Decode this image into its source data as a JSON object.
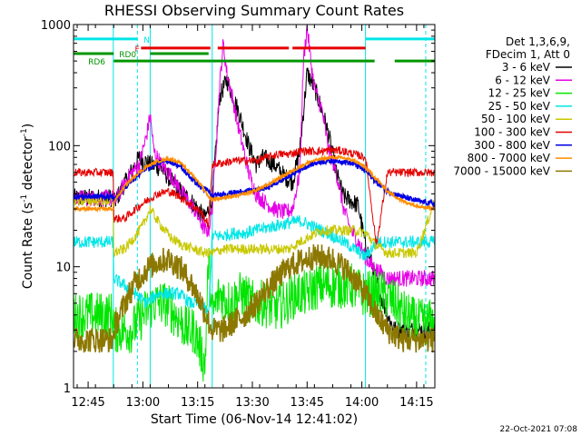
{
  "chart_data": {
    "type": "line",
    "title": "RHESSI Observing Summary Count Rates",
    "xlabel": "Start Time (06-Nov-14 12:41:02)",
    "ylabel": "Count Rate (s",
    "ylabel_sup": "-1",
    "ylabel_tail": " detector",
    "ylabel_sup2": "-1",
    "ylabel_end": ")",
    "x_unit": "minutes after 12:41:02",
    "xlim": [
      0,
      99
    ],
    "ylim": [
      1,
      1000
    ],
    "yscale": "log",
    "x_ticks": [
      {
        "label": "12:45",
        "x": 4
      },
      {
        "label": "13:00",
        "x": 19
      },
      {
        "label": "13:15",
        "x": 34
      },
      {
        "label": "13:30",
        "x": 49
      },
      {
        "label": "13:45",
        "x": 64
      },
      {
        "label": "14:00",
        "x": 79
      },
      {
        "label": "14:15",
        "x": 94
      }
    ],
    "y_ticks": [
      {
        "label": "1",
        "y": 1
      },
      {
        "label": "10",
        "y": 10
      },
      {
        "label": "100",
        "y": 100
      },
      {
        "label": "1000",
        "y": 1000
      }
    ],
    "grid": false,
    "legend_position": "right",
    "legend_header": [
      "Det 1,3,6,9,",
      "FDecim 1, Att 0"
    ],
    "footer_date": "22-Oct-2021 07:08",
    "series": [
      {
        "name": "3 - 6 keV",
        "color": "#000000",
        "x": [
          0,
          10.9,
          11,
          15,
          18,
          21,
          24,
          27,
          30,
          33,
          36,
          37,
          38,
          40,
          42,
          45,
          48,
          50,
          52,
          55,
          58,
          60,
          62,
          64,
          66,
          68,
          70,
          72,
          74,
          76,
          78,
          80,
          82,
          84,
          86,
          88,
          91,
          93,
          96,
          99
        ],
        "y": [
          37,
          37,
          33,
          55,
          80,
          70,
          65,
          50,
          40,
          33,
          25,
          30,
          35,
          250,
          350,
          200,
          100,
          70,
          80,
          70,
          55,
          50,
          90,
          400,
          300,
          200,
          120,
          60,
          38,
          35,
          32,
          15,
          10,
          6,
          4,
          3,
          3,
          3,
          3,
          3
        ]
      },
      {
        "name": "6 - 12 keV",
        "color": "#e600e6",
        "x": [
          0,
          10.9,
          11,
          15,
          18,
          20,
          21,
          22,
          24,
          27,
          30,
          33,
          36,
          37,
          38,
          40,
          41,
          42,
          43,
          45,
          48,
          50,
          52,
          55,
          58,
          60,
          62,
          63,
          64,
          65,
          66,
          68,
          70,
          72,
          74,
          76,
          78,
          80,
          82,
          84,
          86,
          99
        ],
        "y": [
          37,
          37,
          33,
          55,
          70,
          120,
          180,
          90,
          70,
          55,
          40,
          30,
          20,
          20,
          30,
          300,
          700,
          400,
          300,
          150,
          60,
          40,
          35,
          30,
          28,
          30,
          60,
          500,
          950,
          500,
          300,
          200,
          90,
          60,
          30,
          20,
          16,
          12,
          10,
          9,
          8,
          8
        ]
      },
      {
        "name": "12 - 25 keV",
        "color": "#00e600",
        "x": [
          0,
          10.9,
          11,
          13,
          16,
          19,
          22,
          25,
          28,
          31,
          33,
          35,
          36,
          37,
          38,
          40,
          43,
          46,
          49,
          52,
          55,
          58,
          61,
          64,
          67,
          70,
          73,
          76,
          79,
          82,
          85,
          88,
          91,
          94,
          99
        ],
        "y": [
          4,
          4,
          3,
          3,
          3,
          4,
          5,
          5,
          4,
          3,
          3,
          2,
          1.5,
          12,
          4,
          6,
          5,
          6,
          5,
          5,
          4.5,
          5,
          6,
          6,
          7,
          7,
          7,
          7,
          6,
          6,
          6,
          5,
          4,
          3.5,
          3.5
        ]
      },
      {
        "name": "25 - 50 keV",
        "color": "#00e6e6",
        "x": [
          0,
          10.9,
          11,
          14,
          17,
          20,
          23,
          26,
          29,
          32,
          35,
          37,
          38,
          41,
          44,
          47,
          50,
          53,
          56,
          59,
          62,
          65,
          68,
          71,
          74,
          77,
          80,
          83,
          86,
          90,
          94,
          99
        ],
        "y": [
          16,
          16,
          8,
          7,
          6,
          5,
          6,
          6,
          6,
          5,
          5,
          4,
          18,
          18,
          19,
          19,
          20,
          21,
          22,
          23,
          24,
          22,
          20,
          18,
          16,
          14,
          12,
          16,
          16,
          16,
          16,
          16
        ]
      },
      {
        "name": "50 - 100 keV",
        "color": "#c8c800",
        "x": [
          0,
          10.9,
          11,
          14,
          17,
          19,
          21,
          23,
          25,
          27,
          30,
          33,
          36,
          37,
          38,
          41,
          44,
          47,
          50,
          53,
          56,
          59,
          62,
          65,
          68,
          71,
          74,
          77,
          80,
          83,
          86,
          90,
          94,
          99
        ],
        "y": [
          35,
          35,
          13,
          14,
          18,
          22,
          30,
          24,
          20,
          17,
          15,
          14,
          13,
          13,
          13,
          14,
          14,
          14,
          14,
          14,
          14,
          14,
          16,
          18,
          20,
          20,
          20,
          20,
          19,
          15,
          13,
          13,
          13,
          35
        ]
      },
      {
        "name": "100 - 300 keV",
        "color": "#e60000",
        "x": [
          0,
          10.9,
          11,
          14,
          17,
          20,
          23,
          26,
          29,
          32,
          35,
          37,
          38,
          41,
          44,
          47,
          50,
          53,
          56,
          59,
          62,
          65,
          68,
          71,
          74,
          77,
          80,
          83,
          86,
          90,
          94,
          99
        ],
        "y": [
          60,
          60,
          25,
          25,
          30,
          35,
          40,
          42,
          38,
          33,
          28,
          22,
          70,
          72,
          75,
          75,
          75,
          80,
          85,
          85,
          90,
          90,
          90,
          92,
          90,
          85,
          80,
          15,
          60,
          60,
          60,
          60
        ]
      },
      {
        "name": "300 - 800 keV",
        "color": "#0000e6",
        "x": [
          0,
          10.9,
          11,
          14,
          17,
          20,
          23,
          26,
          29,
          32,
          35,
          37,
          38,
          41,
          44,
          47,
          50,
          53,
          56,
          59,
          62,
          65,
          68,
          71,
          74,
          77,
          80,
          83,
          86,
          90,
          94,
          99
        ],
        "y": [
          38,
          38,
          35,
          45,
          55,
          65,
          72,
          75,
          68,
          55,
          45,
          42,
          38,
          40,
          41,
          42,
          43,
          45,
          50,
          56,
          63,
          70,
          74,
          75,
          74,
          70,
          62,
          50,
          42,
          38,
          35,
          33
        ]
      },
      {
        "name": "800 - 7000 keV",
        "color": "#ff8c00",
        "x": [
          0,
          10.9,
          11,
          14,
          17,
          20,
          23,
          26,
          29,
          32,
          35,
          37,
          38,
          41,
          44,
          47,
          50,
          53,
          56,
          59,
          62,
          65,
          68,
          71,
          74,
          77,
          80,
          83,
          86,
          90,
          94,
          99
        ],
        "y": [
          30,
          30,
          34,
          46,
          57,
          67,
          74,
          78,
          73,
          60,
          47,
          38,
          36,
          37,
          38,
          40,
          43,
          47,
          53,
          60,
          67,
          74,
          78,
          80,
          79,
          75,
          66,
          53,
          42,
          35,
          32,
          30
        ]
      },
      {
        "name": "7000 - 15000 keV",
        "color": "#8c7800",
        "x": [
          0,
          10.9,
          11,
          14,
          17,
          20,
          23,
          26,
          29,
          32,
          35,
          37,
          38,
          41,
          44,
          47,
          50,
          53,
          56,
          59,
          62,
          65,
          68,
          71,
          74,
          77,
          80,
          83,
          86,
          90,
          94,
          99
        ],
        "y": [
          2.5,
          2.5,
          3,
          5,
          7.5,
          9.5,
          11,
          11.5,
          10,
          7.5,
          5,
          3.5,
          3,
          3,
          3.5,
          4,
          5,
          6.5,
          8,
          10,
          11,
          12,
          12,
          11.5,
          10,
          8,
          6,
          4,
          3,
          2.5,
          2.5,
          2.5
        ]
      }
    ],
    "flags": [
      {
        "label": "N",
        "color": "#00e6e6",
        "y": 760,
        "segments": [
          [
            0,
            17.5
          ],
          [
            80,
            99
          ]
        ]
      },
      {
        "label": "F",
        "color": "#e60000",
        "y": 640,
        "segments": [
          [
            18.5,
            37.5
          ],
          [
            39.5,
            59
          ],
          [
            60,
            80
          ]
        ]
      },
      {
        "label": "RD0",
        "color": "#009600",
        "y": 575,
        "segments": [
          [
            0,
            11
          ],
          [
            21,
            37
          ]
        ]
      },
      {
        "label": "RD6",
        "color": "#009600",
        "y": 500,
        "segments": [
          [
            11,
            38
          ],
          [
            38,
            82.5
          ],
          [
            88,
            99
          ]
        ]
      }
    ],
    "vertical_markers": [
      {
        "x": 17.5,
        "color": "#00e6e6",
        "style": "dashed"
      },
      {
        "x": 80,
        "color": "#00e6e6",
        "style": "solid"
      },
      {
        "x": 96.5,
        "color": "#00e6e6",
        "style": "dashed"
      },
      {
        "x": 21,
        "color": "#00e6e6",
        "style": "solid"
      },
      {
        "x": 38,
        "color": "#00e6e6",
        "style": "solid"
      },
      {
        "x": 10.9,
        "color": "#00e6e6",
        "style": "solid"
      }
    ]
  }
}
